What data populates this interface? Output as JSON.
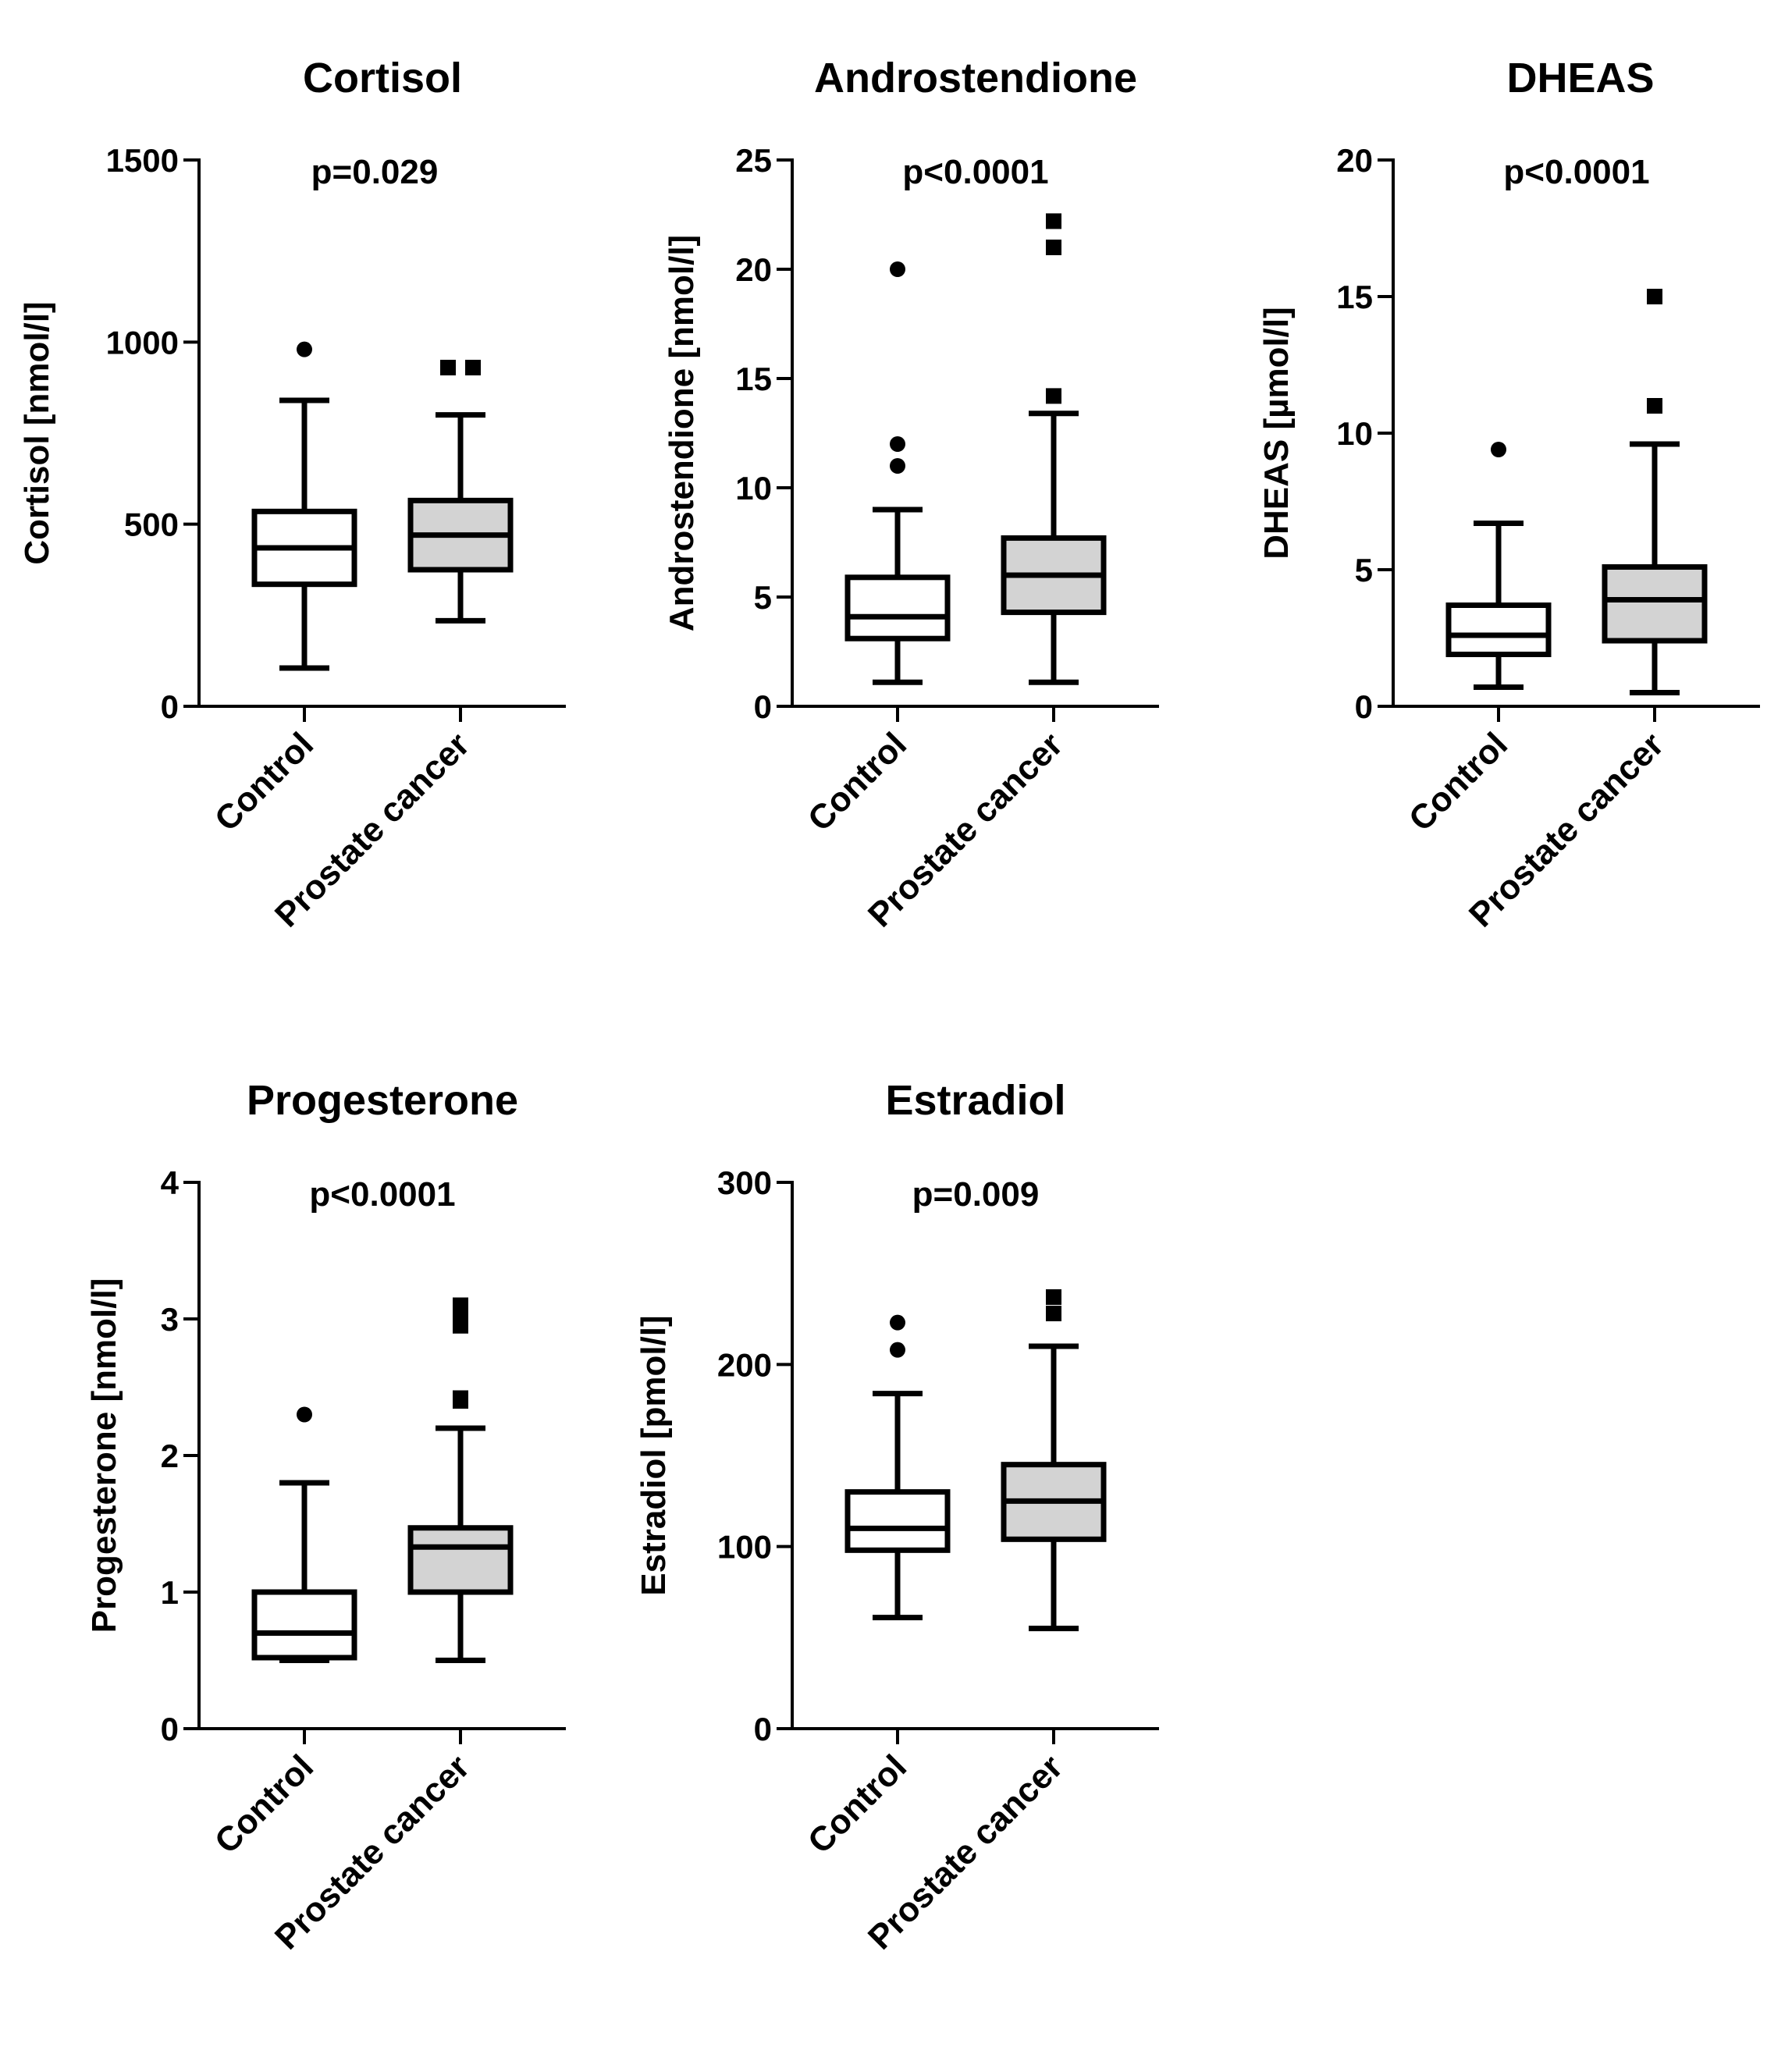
{
  "colors": {
    "control_fill": "#ffffff",
    "cancer_fill": "#d3d3d3",
    "stroke": "#000000"
  },
  "chart_data": [
    {
      "type": "box",
      "title": "Cortisol",
      "ylabel": "Cortisol [nmol/l]",
      "ylim": [
        0,
        1500
      ],
      "yticks": [
        0,
        500,
        1000,
        1500
      ],
      "pvalue": "p=0.029",
      "categories": [
        "Control",
        "Prostate cancer"
      ],
      "boxes": [
        {
          "group": "Control",
          "whisker_low": 105,
          "q1": 335,
          "median": 435,
          "q3": 535,
          "whisker_high": 840,
          "outliers": [
            980
          ],
          "outlier_marker": "circle"
        },
        {
          "group": "Prostate cancer",
          "whisker_low": 235,
          "q1": 375,
          "median": 470,
          "q3": 565,
          "whisker_high": 800,
          "outliers": [
            930,
            930
          ],
          "outlier_marker": "square"
        }
      ]
    },
    {
      "type": "box",
      "title": "Androstendione",
      "ylabel": "Androstendione [nmol/l]",
      "ylim": [
        0,
        25
      ],
      "yticks": [
        0,
        5,
        10,
        15,
        20,
        25
      ],
      "pvalue": "p<0.0001",
      "categories": [
        "Control",
        "Prostate cancer"
      ],
      "boxes": [
        {
          "group": "Control",
          "whisker_low": 1.1,
          "q1": 3.1,
          "median": 4.1,
          "q3": 5.9,
          "whisker_high": 9.0,
          "outliers": [
            11.0,
            12.0,
            20.0
          ],
          "outlier_marker": "circle"
        },
        {
          "group": "Prostate cancer",
          "whisker_low": 1.1,
          "q1": 4.3,
          "median": 6.0,
          "q3": 7.7,
          "whisker_high": 13.4,
          "outliers": [
            14.2,
            21.0,
            22.2
          ],
          "outlier_marker": "square"
        }
      ]
    },
    {
      "type": "box",
      "title": "DHEAS",
      "ylabel": "DHEAS [µmol/l]",
      "ylim": [
        0,
        20
      ],
      "yticks": [
        0,
        5,
        10,
        15,
        20
      ],
      "pvalue": "p<0.0001",
      "categories": [
        "Control",
        "Prostate cancer"
      ],
      "boxes": [
        {
          "group": "Control",
          "whisker_low": 0.7,
          "q1": 1.9,
          "median": 2.6,
          "q3": 3.7,
          "whisker_high": 6.7,
          "outliers": [
            9.4
          ],
          "outlier_marker": "circle"
        },
        {
          "group": "Prostate cancer",
          "whisker_low": 0.5,
          "q1": 2.4,
          "median": 3.9,
          "q3": 5.1,
          "whisker_high": 9.6,
          "outliers": [
            11.0,
            15.0
          ],
          "outlier_marker": "square"
        }
      ]
    },
    {
      "type": "box",
      "title": "Progesterone",
      "ylabel": "Progesterone [nmol/l]",
      "ylim": [
        0,
        4
      ],
      "yticks": [
        0,
        1,
        2,
        3,
        4
      ],
      "pvalue": "p<0.0001",
      "categories": [
        "Control",
        "Prostate cancer"
      ],
      "boxes": [
        {
          "group": "Control",
          "whisker_low": 0.5,
          "q1": 0.52,
          "median": 0.7,
          "q3": 1.0,
          "whisker_high": 1.8,
          "outliers": [
            2.3
          ],
          "outlier_marker": "circle"
        },
        {
          "group": "Prostate cancer",
          "whisker_low": 0.5,
          "q1": 1.0,
          "median": 1.33,
          "q3": 1.47,
          "whisker_high": 2.2,
          "outliers": [
            2.4,
            2.42,
            2.95,
            3.05,
            3.1
          ],
          "outlier_marker": "square"
        }
      ]
    },
    {
      "type": "box",
      "title": "Estradiol",
      "ylabel": "Estradiol [pmol/l]",
      "ylim": [
        0,
        300
      ],
      "yticks": [
        0,
        100,
        200,
        300
      ],
      "pvalue": "p=0.009",
      "categories": [
        "Control",
        "Prostate cancer"
      ],
      "boxes": [
        {
          "group": "Control",
          "whisker_low": 61,
          "q1": 98,
          "median": 110,
          "q3": 130,
          "whisker_high": 184,
          "outliers": [
            208,
            223
          ],
          "outlier_marker": "circle"
        },
        {
          "group": "Prostate cancer",
          "whisker_low": 55,
          "q1": 104,
          "median": 125,
          "q3": 145,
          "whisker_high": 210,
          "outliers": [
            228,
            237
          ],
          "outlier_marker": "square"
        }
      ]
    }
  ]
}
